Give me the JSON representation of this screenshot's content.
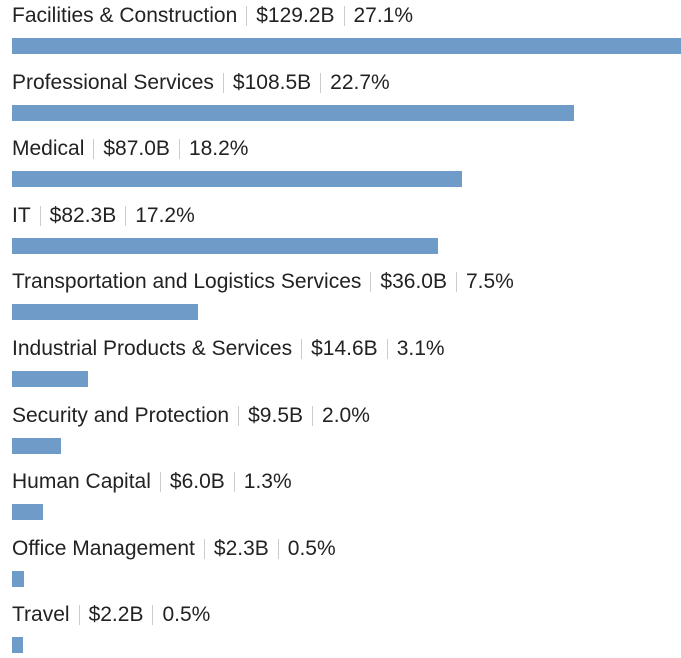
{
  "chart_data": {
    "type": "bar",
    "orientation": "horizontal",
    "color": "#6f9bc8",
    "categories": [
      "Facilities & Construction",
      "Professional Services",
      "Medical",
      "IT",
      "Transportation and Logistics Services",
      "Industrial Products & Services",
      "Security and Protection",
      "Human Capital",
      "Office Management",
      "Travel"
    ],
    "values": [
      129.2,
      108.5,
      87.0,
      82.3,
      36.0,
      14.6,
      9.5,
      6.0,
      2.3,
      2.2
    ],
    "value_labels": [
      "$129.2B",
      "$108.5B",
      "$87.0B",
      "$82.3B",
      "$36.0B",
      "$14.6B",
      "$9.5B",
      "$6.0B",
      "$2.3B",
      "$2.2B"
    ],
    "percent_labels": [
      "27.1%",
      "22.7%",
      "18.2%",
      "17.2%",
      "7.5%",
      "3.1%",
      "2.0%",
      "1.3%",
      "0.5%",
      "0.5%"
    ]
  }
}
